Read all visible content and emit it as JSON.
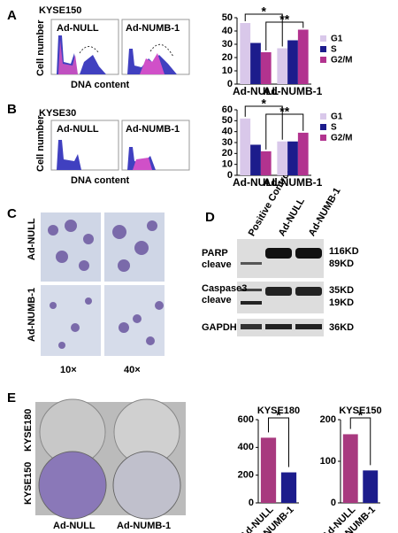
{
  "panels": {
    "A": {
      "letter": "A",
      "cell": "KYSE150",
      "left": "Ad-NULL",
      "right": "Ad-NUMB-1",
      "ylabel": "Cell number",
      "xlabel": "DNA content"
    },
    "B": {
      "letter": "B",
      "cell": "KYSE30",
      "left": "Ad-NULL",
      "right": "Ad-NUMB-1",
      "ylabel": "Cell number",
      "xlabel": "DNA content"
    },
    "C": {
      "letter": "C",
      "row1": "Ad-NULL",
      "row2": "Ad-NUMB-1",
      "col1": "10×",
      "col2": "40×"
    },
    "D": {
      "letter": "D",
      "lanes": [
        "Positive Control",
        "Ad-NULL",
        "Ad-NUMB-1"
      ],
      "blot1": "PARP",
      "blot1b": "cleave",
      "blot2": "Caspase3",
      "blot2b": "cleave",
      "blot3": "GAPDH",
      "sizes": [
        "116KD",
        "89KD",
        "35KD",
        "19KD",
        "36KD"
      ]
    },
    "E": {
      "letter": "E",
      "row1": "KYSE180",
      "row2": "KYSE150",
      "col1": "Ad-NULL",
      "col2": "Ad-NUMB-1"
    }
  },
  "chart_data": [
    {
      "type": "bar",
      "categories": [
        "Ad-NULL",
        "Ad-NUMB-1"
      ],
      "series": [
        {
          "name": "G1",
          "color": "#d9c8ea",
          "values": [
            46,
            27
          ]
        },
        {
          "name": "S",
          "color": "#1c1c8c",
          "values": [
            31,
            33
          ]
        },
        {
          "name": "G2/M",
          "color": "#b2338f",
          "values": [
            24,
            41
          ]
        }
      ],
      "ylim": [
        0,
        50
      ],
      "yticks": [
        0,
        10,
        20,
        30,
        40,
        50
      ],
      "annotations": [
        "*",
        "**"
      ]
    },
    {
      "type": "bar",
      "categories": [
        "Ad-NULL",
        "Ad-NUMB-1"
      ],
      "series": [
        {
          "name": "G1",
          "color": "#d9c8ea",
          "values": [
            52,
            31
          ]
        },
        {
          "name": "S",
          "color": "#1c1c8c",
          "values": [
            28,
            31
          ]
        },
        {
          "name": "G2/M",
          "color": "#b2338f",
          "values": [
            22,
            39
          ]
        }
      ],
      "ylim": [
        0,
        60
      ],
      "yticks": [
        0,
        10,
        20,
        30,
        40,
        50,
        60
      ],
      "annotations": [
        "*",
        "**"
      ]
    },
    {
      "type": "bar",
      "title": "KYSE180",
      "categories": [
        "Ad-NULL",
        "Ad-NUMB-1"
      ],
      "values": [
        470,
        220
      ],
      "colors": [
        "#a8397f",
        "#1c1c8c"
      ],
      "ylim": [
        0,
        600
      ],
      "yticks": [
        0,
        200,
        400,
        600
      ],
      "annotations": [
        "*"
      ]
    },
    {
      "type": "bar",
      "title": "KYSE150",
      "categories": [
        "Ad-NULL",
        "Ad-NUMB-1"
      ],
      "values": [
        165,
        78
      ],
      "colors": [
        "#a8397f",
        "#1c1c8c"
      ],
      "ylim": [
        0,
        200
      ],
      "yticks": [
        0,
        100,
        200
      ],
      "annotations": [
        "*"
      ]
    }
  ]
}
